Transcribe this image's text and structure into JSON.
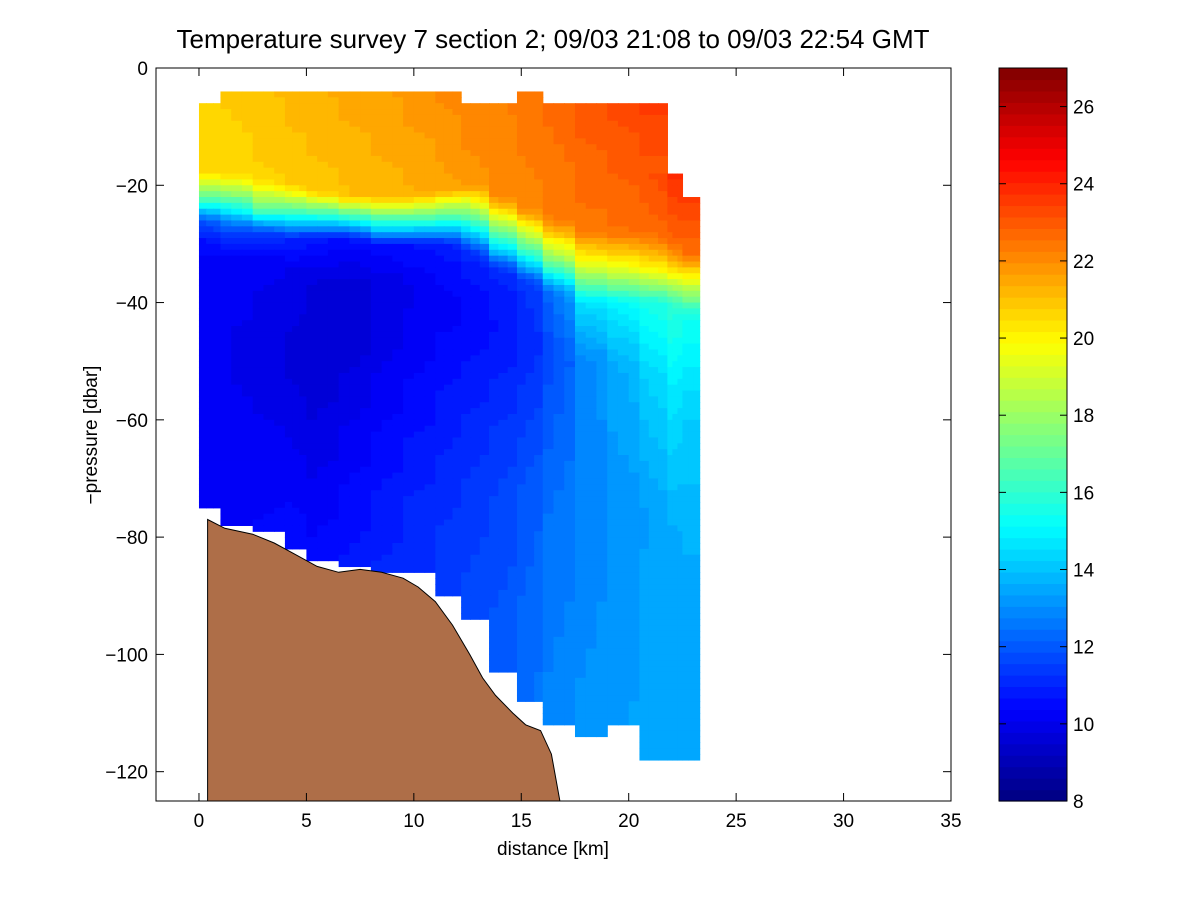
{
  "chart_data": {
    "type": "heatmap",
    "subtype": "filled-contour-section",
    "title": "Temperature survey 7 section 2; 09/03 21:08 to 09/03 22:54 GMT",
    "xlabel": "distance [km]",
    "ylabel": "−pressure [dbar]",
    "xlim": [
      -2,
      35
    ],
    "ylim": [
      -125,
      0
    ],
    "x_ticks": [
      0,
      5,
      10,
      15,
      20,
      25,
      30,
      35
    ],
    "x_tick_labels": [
      "0",
      "5",
      "10",
      "15",
      "20",
      "25",
      "30",
      "35"
    ],
    "y_ticks": [
      0,
      -20,
      -40,
      -60,
      -80,
      -100,
      -120
    ],
    "y_tick_labels": [
      "0",
      "−20",
      "−40",
      "−60",
      "−80",
      "−100",
      "−120"
    ],
    "grid": false,
    "colorbar": {
      "colormap": "jet",
      "range": [
        8,
        27
      ],
      "ticks": [
        8,
        10,
        12,
        14,
        16,
        18,
        20,
        22,
        24,
        26
      ],
      "tick_labels": [
        "8",
        "10",
        "12",
        "14",
        "16",
        "18",
        "20",
        "22",
        "24",
        "26"
      ]
    },
    "data_columns": [
      {
        "x": 0.0,
        "top": -6,
        "bottom": -75,
        "profile": [
          [
            -6,
            20.7
          ],
          [
            -18,
            20.5
          ],
          [
            -22,
            17
          ],
          [
            -26,
            12
          ],
          [
            -30,
            10.4
          ],
          [
            -40,
            10.2
          ],
          [
            -60,
            10.1
          ],
          [
            -75,
            10.2
          ]
        ]
      },
      {
        "x": 1.0,
        "top": -4,
        "bottom": -78,
        "profile": [
          [
            -4,
            20.8
          ],
          [
            -18,
            20.6
          ],
          [
            -22,
            17
          ],
          [
            -27,
            12
          ],
          [
            -32,
            10.3
          ],
          [
            -45,
            10.1
          ],
          [
            -60,
            10.1
          ],
          [
            -78,
            10.3
          ]
        ]
      },
      {
        "x": 2.5,
        "top": -4,
        "bottom": -79,
        "profile": [
          [
            -4,
            21.0
          ],
          [
            -19,
            20.7
          ],
          [
            -24,
            17
          ],
          [
            -28,
            11.5
          ],
          [
            -33,
            10.2
          ],
          [
            -48,
            9.9
          ],
          [
            -65,
            10.2
          ],
          [
            -79,
            10.4
          ]
        ]
      },
      {
        "x": 4.0,
        "top": -4,
        "bottom": -82,
        "profile": [
          [
            -4,
            21.2
          ],
          [
            -20,
            20.8
          ],
          [
            -25,
            16
          ],
          [
            -29,
            11
          ],
          [
            -35,
            10.0
          ],
          [
            -50,
            9.7
          ],
          [
            -70,
            10.3
          ],
          [
            -82,
            10.6
          ]
        ]
      },
      {
        "x": 5.0,
        "top": -4,
        "bottom": -84,
        "profile": [
          [
            -4,
            21.3
          ],
          [
            -21,
            20.9
          ],
          [
            -25,
            16
          ],
          [
            -29,
            10.8
          ],
          [
            -36,
            9.8
          ],
          [
            -50,
            9.5
          ],
          [
            -65,
            9.9
          ],
          [
            -84,
            10.5
          ]
        ]
      },
      {
        "x": 6.5,
        "top": -4,
        "bottom": -85,
        "profile": [
          [
            -4,
            21.5
          ],
          [
            -22,
            21.0
          ],
          [
            -26,
            15
          ],
          [
            -29,
            10.6
          ],
          [
            -36,
            9.7
          ],
          [
            -48,
            9.6
          ],
          [
            -65,
            10.2
          ],
          [
            -85,
            10.7
          ]
        ]
      },
      {
        "x": 8.0,
        "top": -4,
        "bottom": -86,
        "profile": [
          [
            -4,
            21.6
          ],
          [
            -22,
            21.2
          ],
          [
            -27,
            15
          ],
          [
            -30,
            10.6
          ],
          [
            -37,
            9.8
          ],
          [
            -50,
            10.0
          ],
          [
            -70,
            10.6
          ],
          [
            -86,
            11.0
          ]
        ]
      },
      {
        "x": 9.5,
        "top": -4,
        "bottom": -86,
        "profile": [
          [
            -4,
            21.8
          ],
          [
            -22,
            21.3
          ],
          [
            -27,
            15
          ],
          [
            -30,
            10.7
          ],
          [
            -38,
            10.0
          ],
          [
            -55,
            10.4
          ],
          [
            -75,
            11.0
          ],
          [
            -86,
            11.2
          ]
        ]
      },
      {
        "x": 11.0,
        "top": -4,
        "bottom": -90,
        "profile": [
          [
            -4,
            22.0
          ],
          [
            -21,
            21.5
          ],
          [
            -26,
            16
          ],
          [
            -30,
            10.8
          ],
          [
            -40,
            10.2
          ],
          [
            -60,
            10.8
          ],
          [
            -80,
            11.3
          ],
          [
            -90,
            11.4
          ]
        ]
      },
      {
        "x": 12.2,
        "top": -6,
        "bottom": -94,
        "profile": [
          [
            -6,
            22.1
          ],
          [
            -20,
            21.8
          ],
          [
            -26,
            16
          ],
          [
            -31,
            10.9
          ],
          [
            -42,
            10.4
          ],
          [
            -60,
            11.0
          ],
          [
            -80,
            11.5
          ],
          [
            -94,
            11.6
          ]
        ]
      },
      {
        "x": 13.5,
        "top": -6,
        "bottom": -103,
        "profile": [
          [
            -6,
            22.2
          ],
          [
            -22,
            22.0
          ],
          [
            -29,
            16
          ],
          [
            -34,
            11.0
          ],
          [
            -44,
            10.6
          ],
          [
            -65,
            11.4
          ],
          [
            -90,
            11.8
          ],
          [
            -103,
            12.0
          ]
        ]
      },
      {
        "x": 14.8,
        "top": -4,
        "bottom": -108,
        "profile": [
          [
            -4,
            22.4
          ],
          [
            -24,
            22.1
          ],
          [
            -31,
            16
          ],
          [
            -36,
            11.2
          ],
          [
            -46,
            10.9
          ],
          [
            -70,
            11.8
          ],
          [
            -95,
            12.2
          ],
          [
            -108,
            12.3
          ]
        ]
      },
      {
        "x": 16.0,
        "top": -6,
        "bottom": -112,
        "profile": [
          [
            -6,
            22.6
          ],
          [
            -26,
            22.2
          ],
          [
            -33,
            17
          ],
          [
            -38,
            12.0
          ],
          [
            -48,
            11.6
          ],
          [
            -75,
            12.4
          ],
          [
            -100,
            12.7
          ],
          [
            -112,
            12.8
          ]
        ]
      },
      {
        "x": 17.5,
        "top": -6,
        "bottom": -114,
        "profile": [
          [
            -6,
            23.0
          ],
          [
            -28,
            22.4
          ],
          [
            -34,
            19
          ],
          [
            -40,
            14.5
          ],
          [
            -50,
            12.8
          ],
          [
            -75,
            12.9
          ],
          [
            -100,
            13.0
          ],
          [
            -114,
            13.1
          ]
        ]
      },
      {
        "x": 19.0,
        "top": -6,
        "bottom": -112,
        "profile": [
          [
            -6,
            23.2
          ],
          [
            -28,
            22.5
          ],
          [
            -34,
            19.5
          ],
          [
            -40,
            15.0
          ],
          [
            -50,
            13.5
          ],
          [
            -75,
            13.1
          ],
          [
            -100,
            13.2
          ],
          [
            -112,
            13.3
          ]
        ]
      },
      {
        "x": 20.5,
        "top": -6,
        "bottom": -118,
        "profile": [
          [
            -6,
            23.5
          ],
          [
            -28,
            22.6
          ],
          [
            -34,
            20
          ],
          [
            -40,
            15.5
          ],
          [
            -52,
            14.2
          ],
          [
            -75,
            13.3
          ],
          [
            -100,
            13.4
          ],
          [
            -118,
            13.5
          ]
        ]
      },
      {
        "x": 21.8,
        "top": -18,
        "bottom": -118,
        "profile": [
          [
            -18,
            23.8
          ],
          [
            -30,
            22.7
          ],
          [
            -35,
            20
          ],
          [
            -40,
            16.0
          ],
          [
            -55,
            14.8
          ],
          [
            -80,
            13.5
          ],
          [
            -100,
            13.5
          ],
          [
            -118,
            13.6
          ]
        ]
      },
      {
        "x": 22.5,
        "top": -22,
        "bottom": -118,
        "profile": [
          [
            -22,
            23.6
          ],
          [
            -32,
            22.5
          ],
          [
            -37,
            19
          ],
          [
            -42,
            15.5
          ],
          [
            -60,
            14.2
          ],
          [
            -85,
            13.6
          ],
          [
            -118,
            13.6
          ]
        ]
      }
    ],
    "bathymetry": [
      [
        0.4,
        -125
      ],
      [
        0.4,
        -77
      ],
      [
        1.2,
        -78.5
      ],
      [
        2.5,
        -79.5
      ],
      [
        3.5,
        -81
      ],
      [
        4.5,
        -83
      ],
      [
        5.5,
        -85
      ],
      [
        6.5,
        -86
      ],
      [
        7.5,
        -85.5
      ],
      [
        8.5,
        -86
      ],
      [
        9.5,
        -87
      ],
      [
        10.2,
        -88.5
      ],
      [
        11.0,
        -91
      ],
      [
        11.8,
        -95
      ],
      [
        12.6,
        -100
      ],
      [
        13.2,
        -104
      ],
      [
        13.8,
        -107
      ],
      [
        14.6,
        -110
      ],
      [
        15.2,
        -112
      ],
      [
        15.9,
        -113
      ],
      [
        16.4,
        -117
      ],
      [
        16.8,
        -125
      ]
    ]
  }
}
